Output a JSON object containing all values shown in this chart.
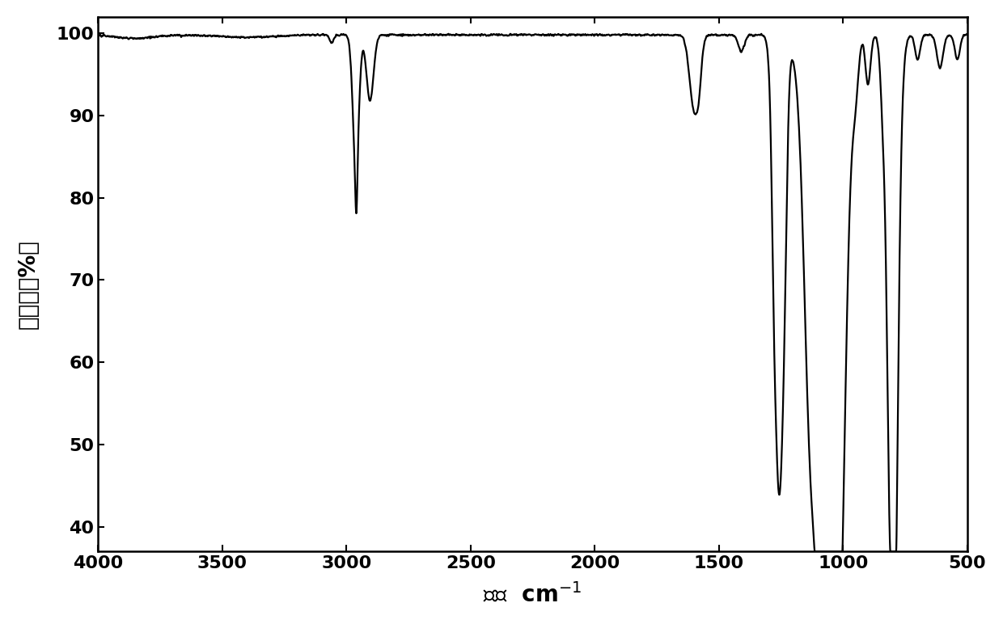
{
  "xlabel": "波数  cm-1",
  "ylabel_chars": [
    "透",
    "光",
    "率"
  ],
  "ylabel_units": "(％)",
  "xlim": [
    500,
    4000
  ],
  "ylim": [
    37,
    102
  ],
  "xticks": [
    500,
    1000,
    1500,
    2000,
    2500,
    3000,
    3500,
    4000
  ],
  "yticks": [
    40,
    50,
    60,
    70,
    80,
    90,
    100
  ],
  "line_color": "#000000",
  "line_width": 1.6,
  "background_color": "#ffffff",
  "xlabel_fontsize": 20,
  "ylabel_fontsize": 20,
  "tick_fontsize": 16
}
